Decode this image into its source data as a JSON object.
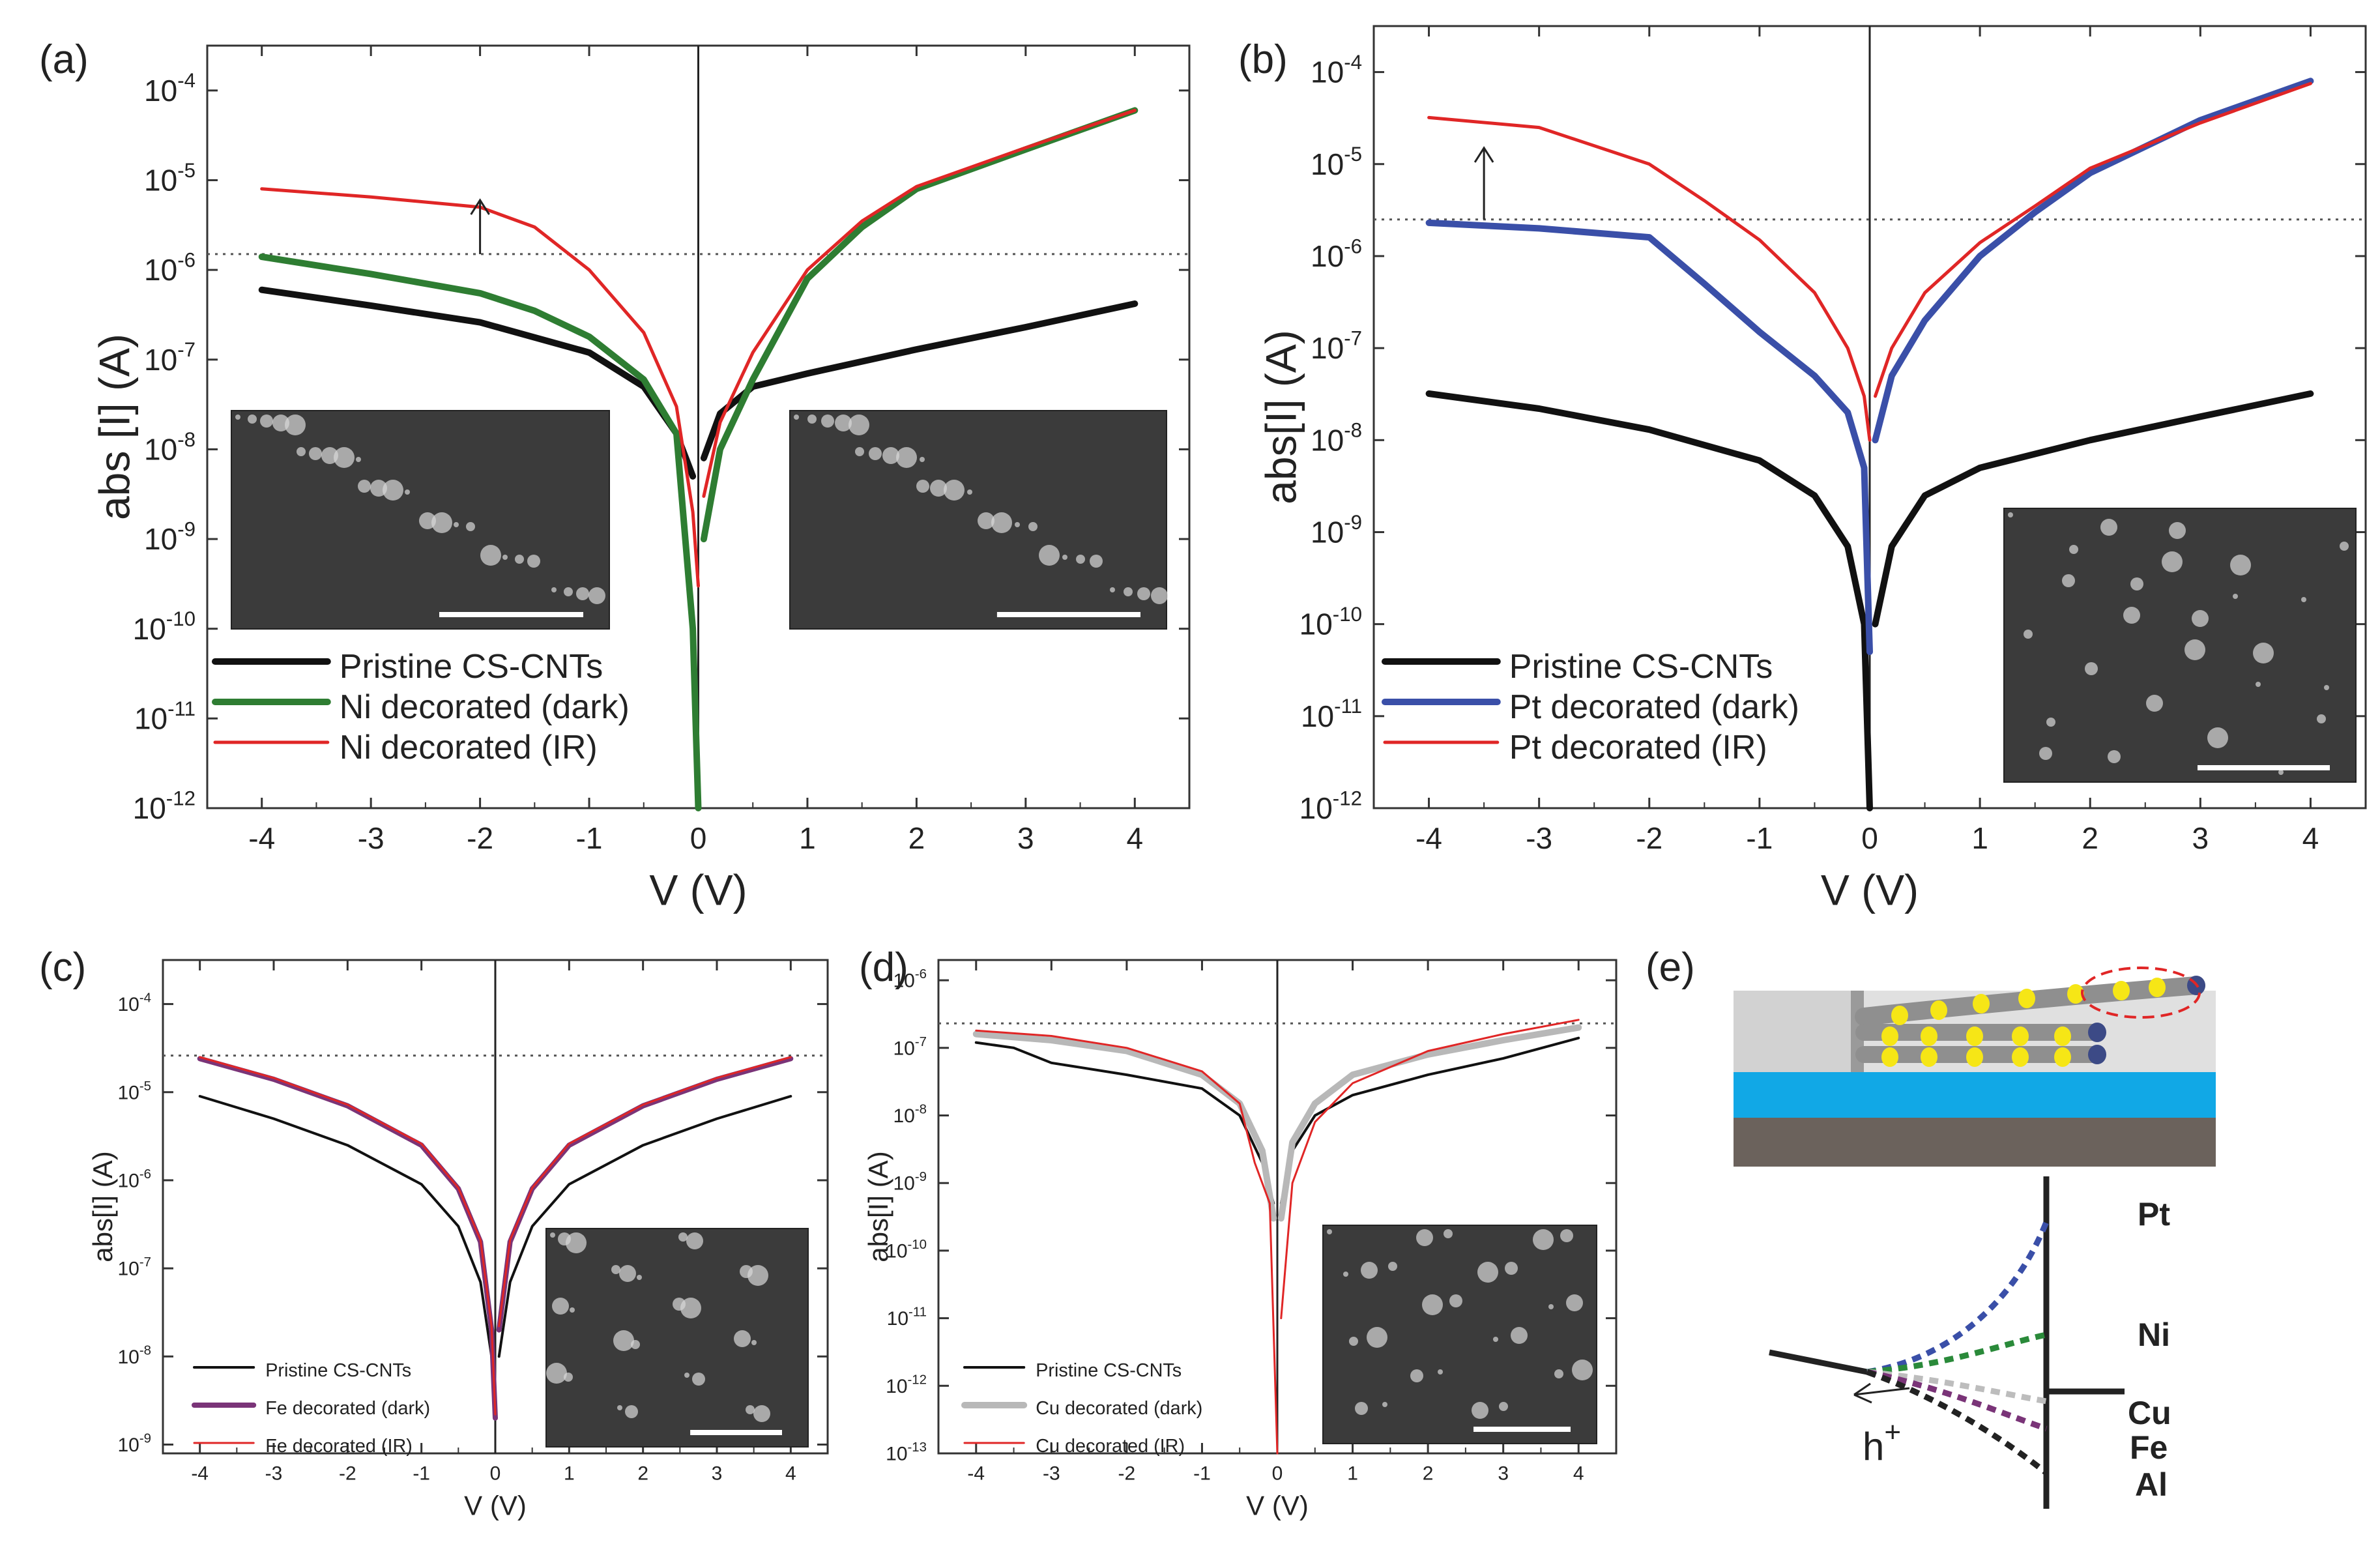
{
  "panel_labels": [
    "(a)",
    "(b)",
    "(c)",
    "(d)",
    "(e)"
  ],
  "colors": {
    "pristine": "#111111",
    "ni_dark": "#2e7d32",
    "ir": "#e02626",
    "pt_dark": "#3a4fa8",
    "fe_dark": "#7a3478",
    "cu_dark": "#b8b8b8",
    "substrate_blue": "#11a8e6",
    "substrate_brown": "#6b625c",
    "particle_yellow": "#f6e616",
    "pt_text": "#3a4fa8",
    "ni_text": "#2a8a3a",
    "cu_text": "#bdbdbd",
    "fe_text": "#7a3478",
    "al_text": "#222222"
  },
  "chart_data": [
    {
      "id": "a",
      "type": "line",
      "xlabel": "V (V)",
      "ylabel": "abs [I] (A)",
      "xlim": [
        -4.5,
        4.5
      ],
      "ylog_range": [
        -12,
        -3.5
      ],
      "x_ticks": [
        "-4",
        "-3",
        "-2",
        "-1",
        "0",
        "1",
        "2",
        "3",
        "4"
      ],
      "y_tick_exps": [
        "-12",
        "-11",
        "-10",
        "-9",
        "-8",
        "-7",
        "-6",
        "-5",
        "-4"
      ],
      "y_tick_base": "10",
      "threshold": 1.5e-06,
      "arrow": {
        "x": -2,
        "from": 1.5e-06,
        "to": 6e-06
      },
      "legend": [
        "Pristine CS-CNTs",
        "Ni decorated (dark)",
        "Ni decorated (IR)"
      ],
      "series": [
        {
          "name": "Pristine CS-CNTs",
          "color_key": "pristine",
          "width": 10,
          "neg": [
            [
              -4,
              6e-07
            ],
            [
              -3,
              4e-07
            ],
            [
              -2,
              2.6e-07
            ],
            [
              -1,
              1.2e-07
            ],
            [
              -0.5,
              5e-08
            ],
            [
              -0.2,
              1.5e-08
            ],
            [
              -0.05,
              5e-09
            ]
          ],
          "pos": [
            [
              0.05,
              8e-09
            ],
            [
              0.2,
              2.5e-08
            ],
            [
              0.5,
              5e-08
            ],
            [
              1,
              7e-08
            ],
            [
              2,
              1.3e-07
            ],
            [
              3,
              2.3e-07
            ],
            [
              4,
              4.2e-07
            ]
          ]
        },
        {
          "name": "Ni decorated (dark)",
          "color_key": "ni_dark",
          "width": 10,
          "neg": [
            [
              -4,
              1.4e-06
            ],
            [
              -3,
              9e-07
            ],
            [
              -2,
              5.5e-07
            ],
            [
              -1.5,
              3.5e-07
            ],
            [
              -1,
              1.8e-07
            ],
            [
              -0.5,
              6e-08
            ],
            [
              -0.2,
              1.5e-08
            ],
            [
              -0.05,
              1e-10
            ],
            [
              0,
              1e-12
            ]
          ],
          "pos": [
            [
              0.05,
              1e-09
            ],
            [
              0.2,
              1e-08
            ],
            [
              0.5,
              6e-08
            ],
            [
              1,
              8e-07
            ],
            [
              1.5,
              3e-06
            ],
            [
              2,
              8e-06
            ],
            [
              3,
              2.2e-05
            ],
            [
              4,
              6e-05
            ]
          ]
        },
        {
          "name": "Ni decorated (IR)",
          "color_key": "ir",
          "width": 5,
          "neg": [
            [
              -4,
              8e-06
            ],
            [
              -3,
              6.5e-06
            ],
            [
              -2,
              5e-06
            ],
            [
              -1.5,
              3e-06
            ],
            [
              -1,
              1e-06
            ],
            [
              -0.5,
              2e-07
            ],
            [
              -0.2,
              3e-08
            ],
            [
              -0.05,
              2e-09
            ],
            [
              0,
              3e-10
            ]
          ],
          "pos": [
            [
              0.05,
              3e-09
            ],
            [
              0.2,
              2e-08
            ],
            [
              0.5,
              1.2e-07
            ],
            [
              1,
              1e-06
            ],
            [
              1.5,
              3.5e-06
            ],
            [
              2,
              8.5e-06
            ],
            [
              3,
              2.3e-05
            ],
            [
              4,
              6e-05
            ]
          ]
        }
      ]
    },
    {
      "id": "b",
      "type": "line",
      "xlabel": "V (V)",
      "ylabel": "abs[I] (A)",
      "xlim": [
        -4.5,
        4.5
      ],
      "ylog_range": [
        -12,
        -3.5
      ],
      "x_ticks": [
        "-4",
        "-3",
        "-2",
        "-1",
        "0",
        "1",
        "2",
        "3",
        "4"
      ],
      "y_tick_exps": [
        "-12",
        "-11",
        "-10",
        "-9",
        "-8",
        "-7",
        "-6",
        "-5",
        "-4"
      ],
      "y_tick_base": "10",
      "threshold": 2.5e-06,
      "arrow": {
        "x": -3.5,
        "from": 2.5e-06,
        "to": 1.5e-05
      },
      "legend": [
        "Pristine CS-CNTs",
        "Pt decorated (dark)",
        "Pt decorated (IR)"
      ],
      "series": [
        {
          "name": "Pristine CS-CNTs",
          "color_key": "pristine",
          "width": 10,
          "neg": [
            [
              -4,
              3.2e-08
            ],
            [
              -3,
              2.2e-08
            ],
            [
              -2,
              1.3e-08
            ],
            [
              -1,
              6e-09
            ],
            [
              -0.5,
              2.5e-09
            ],
            [
              -0.2,
              7e-10
            ],
            [
              -0.05,
              1e-10
            ],
            [
              0,
              1e-12
            ]
          ],
          "pos": [
            [
              0.05,
              1e-10
            ],
            [
              0.2,
              7e-10
            ],
            [
              0.5,
              2.5e-09
            ],
            [
              1,
              5e-09
            ],
            [
              2,
              1e-08
            ],
            [
              3,
              1.8e-08
            ],
            [
              4,
              3.2e-08
            ]
          ]
        },
        {
          "name": "Pt decorated (dark)",
          "color_key": "pt_dark",
          "width": 10,
          "neg": [
            [
              -4,
              2.3e-06
            ],
            [
              -3,
              2e-06
            ],
            [
              -2,
              1.6e-06
            ],
            [
              -1.5,
              5e-07
            ],
            [
              -1,
              1.5e-07
            ],
            [
              -0.5,
              5e-08
            ],
            [
              -0.2,
              2e-08
            ],
            [
              -0.05,
              5e-09
            ],
            [
              0,
              5e-11
            ]
          ],
          "pos": [
            [
              0.05,
              1e-08
            ],
            [
              0.2,
              5e-08
            ],
            [
              0.5,
              2e-07
            ],
            [
              1,
              1e-06
            ],
            [
              1.5,
              3e-06
            ],
            [
              2,
              8e-06
            ],
            [
              3,
              3e-05
            ],
            [
              4,
              8e-05
            ]
          ]
        },
        {
          "name": "Pt decorated (IR)",
          "color_key": "ir",
          "width": 5,
          "neg": [
            [
              -4,
              3.2e-05
            ],
            [
              -3,
              2.5e-05
            ],
            [
              -2,
              1e-05
            ],
            [
              -1.5,
              4e-06
            ],
            [
              -1,
              1.5e-06
            ],
            [
              -0.5,
              4e-07
            ],
            [
              -0.2,
              1e-07
            ],
            [
              -0.05,
              3e-08
            ],
            [
              0,
              1e-08
            ]
          ],
          "pos": [
            [
              0.05,
              3e-08
            ],
            [
              0.2,
              1e-07
            ],
            [
              0.5,
              4e-07
            ],
            [
              1,
              1.4e-06
            ],
            [
              1.5,
              3.5e-06
            ],
            [
              2,
              9e-06
            ],
            [
              3,
              2.8e-05
            ],
            [
              4,
              7.5e-05
            ]
          ]
        }
      ]
    },
    {
      "id": "c",
      "type": "line",
      "xlabel": "V (V)",
      "ylabel": "abs[I] (A)",
      "xlim": [
        -4.5,
        4.5
      ],
      "ylog_range": [
        -9.1,
        -3.5
      ],
      "x_ticks": [
        "-4",
        "-3",
        "-2",
        "-1",
        "0",
        "1",
        "2",
        "3",
        "4"
      ],
      "y_tick_exps": [
        "-9",
        "-8",
        "-7",
        "-6",
        "-5",
        "-4"
      ],
      "y_tick_base": "10",
      "threshold": 2.6e-05,
      "legend": [
        "Pristine CS-CNTs",
        "Fe decorated (dark)",
        "Fe decorated (IR)"
      ],
      "series": [
        {
          "name": "Pristine CS-CNTs",
          "color_key": "pristine",
          "width": 4,
          "neg": [
            [
              -4,
              9e-06
            ],
            [
              -3,
              5e-06
            ],
            [
              -2,
              2.5e-06
            ],
            [
              -1,
              9e-07
            ],
            [
              -0.5,
              3e-07
            ],
            [
              -0.2,
              7e-08
            ],
            [
              -0.05,
              1e-08
            ],
            [
              0,
              2e-09
            ]
          ],
          "pos": [
            [
              0.05,
              1e-08
            ],
            [
              0.2,
              7e-08
            ],
            [
              0.5,
              3e-07
            ],
            [
              1,
              9e-07
            ],
            [
              2,
              2.5e-06
            ],
            [
              3,
              5e-06
            ],
            [
              4,
              9e-06
            ]
          ]
        },
        {
          "name": "Fe decorated (dark)",
          "color_key": "fe_dark",
          "width": 8,
          "neg": [
            [
              -4,
              2.4e-05
            ],
            [
              -3,
              1.4e-05
            ],
            [
              -2,
              7e-06
            ],
            [
              -1,
              2.5e-06
            ],
            [
              -0.5,
              8e-07
            ],
            [
              -0.2,
              2e-07
            ],
            [
              -0.05,
              2e-08
            ],
            [
              0,
              2e-09
            ]
          ],
          "pos": [
            [
              0.05,
              2e-08
            ],
            [
              0.2,
              2e-07
            ],
            [
              0.5,
              8e-07
            ],
            [
              1,
              2.5e-06
            ],
            [
              2,
              7e-06
            ],
            [
              3,
              1.4e-05
            ],
            [
              4,
              2.4e-05
            ]
          ]
        },
        {
          "name": "Fe decorated (IR)",
          "color_key": "ir",
          "width": 3,
          "neg": [
            [
              -4,
              2.5e-05
            ],
            [
              -3,
              1.45e-05
            ],
            [
              -2,
              7.2e-06
            ],
            [
              -1,
              2.6e-06
            ],
            [
              -0.5,
              8.2e-07
            ],
            [
              -0.2,
              2.1e-07
            ],
            [
              -0.05,
              2.2e-08
            ],
            [
              0,
              2.2e-09
            ]
          ],
          "pos": [
            [
              0.05,
              2.2e-08
            ],
            [
              0.2,
              2.1e-07
            ],
            [
              0.5,
              8.2e-07
            ],
            [
              1,
              2.6e-06
            ],
            [
              2,
              7.2e-06
            ],
            [
              3,
              1.45e-05
            ],
            [
              4,
              2.5e-05
            ]
          ]
        }
      ]
    },
    {
      "id": "d",
      "type": "line",
      "xlabel": "V (V)",
      "ylabel": "abs[I] (A)",
      "xlim": [
        -4.5,
        4.5
      ],
      "ylog_range": [
        -13,
        -5.7
      ],
      "x_ticks": [
        "-4",
        "-3",
        "-2",
        "-1",
        "0",
        "1",
        "2",
        "3",
        "4"
      ],
      "y_tick_exps": [
        "-13",
        "-12",
        "-11",
        "-10",
        "-9",
        "-8",
        "-7",
        "-6"
      ],
      "y_tick_base": "10",
      "threshold": 2.3e-07,
      "legend": [
        "Pristine CS-CNTs",
        "Cu decorated (dark)",
        "Cu decorated (IR)"
      ],
      "series": [
        {
          "name": "Pristine CS-CNTs",
          "color_key": "pristine",
          "width": 4,
          "neg": [
            [
              -4,
              1.2e-07
            ],
            [
              -3.5,
              1e-07
            ],
            [
              -3,
              6e-08
            ],
            [
              -2,
              4e-08
            ],
            [
              -1,
              2.5e-08
            ],
            [
              -0.5,
              1e-08
            ],
            [
              -0.2,
              2e-09
            ],
            [
              -0.05,
              5e-10
            ]
          ],
          "pos": [
            [
              0.05,
              5e-10
            ],
            [
              0.2,
              3e-09
            ],
            [
              0.5,
              1e-08
            ],
            [
              1,
              2e-08
            ],
            [
              2,
              4e-08
            ],
            [
              3,
              7e-08
            ],
            [
              4,
              1.4e-07
            ]
          ]
        },
        {
          "name": "Cu decorated (dark)",
          "color_key": "cu_dark",
          "width": 10,
          "neg": [
            [
              -4,
              1.6e-07
            ],
            [
              -3,
              1.3e-07
            ],
            [
              -2,
              9e-08
            ],
            [
              -1,
              4e-08
            ],
            [
              -0.5,
              1.5e-08
            ],
            [
              -0.2,
              3e-09
            ],
            [
              -0.05,
              3e-10
            ]
          ],
          "pos": [
            [
              0.05,
              3e-10
            ],
            [
              0.2,
              4e-09
            ],
            [
              0.5,
              1.5e-08
            ],
            [
              1,
              4e-08
            ],
            [
              2,
              8e-08
            ],
            [
              3,
              1.3e-07
            ],
            [
              4,
              2e-07
            ]
          ]
        },
        {
          "name": "Cu decorated (IR)",
          "color_key": "ir",
          "width": 3,
          "neg": [
            [
              -4,
              1.8e-07
            ],
            [
              -3,
              1.5e-07
            ],
            [
              -2,
              1e-07
            ],
            [
              -1,
              4.5e-08
            ],
            [
              -0.5,
              1.5e-08
            ],
            [
              -0.3,
              2e-09
            ],
            [
              -0.1,
              5e-10
            ],
            [
              0,
              1e-13
            ]
          ],
          "pos": [
            [
              0.05,
              1e-11
            ],
            [
              0.2,
              1e-09
            ],
            [
              0.5,
              8e-09
            ],
            [
              1,
              3e-08
            ],
            [
              2,
              9e-08
            ],
            [
              3,
              1.6e-07
            ],
            [
              4,
              2.6e-07
            ]
          ]
        }
      ]
    }
  ],
  "panel_e": {
    "metals": [
      "Pt",
      "Ni",
      "Cu",
      "Fe",
      "Al"
    ],
    "carrier": "h",
    "carrier_sup": "+"
  },
  "icons": [
    "sem-inset-image",
    "energy-band-diagram",
    "device-schematic"
  ]
}
